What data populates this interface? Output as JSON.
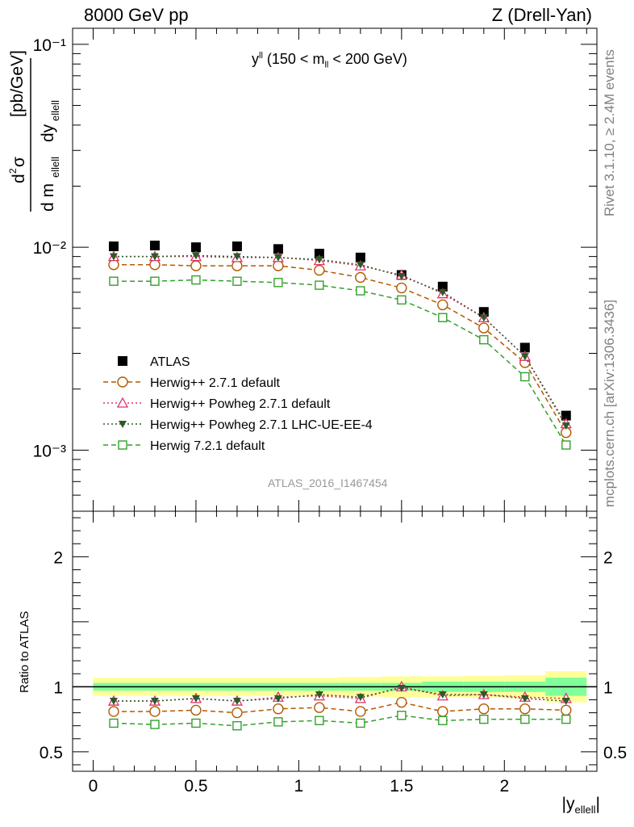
{
  "header": {
    "left": "8000 GeV pp",
    "right": "Z (Drell-Yan)"
  },
  "side_labels": {
    "rivet": "Rivet 3.1.10, ≥ 2.4M events",
    "mcplots": "mcplots.cern.ch [arXiv:1306.3436]"
  },
  "analysis_id": "ATLAS_2016_I1467454",
  "observable": {
    "main": "y",
    "sup": "ll",
    "range_prefix": "(150 < m",
    "range_sub": "ll",
    "range_suffix": " < 200 GeV)"
  },
  "y_axis_label": {
    "units": "[pb/GeV]"
  },
  "ratio_label": "Ratio to ATLAS",
  "x_axis_label": {
    "main": "|y",
    "sub": "ellell",
    "close": "|"
  },
  "chart_data": [
    {
      "type": "scatter",
      "panel": "main",
      "yscale": "log",
      "xlim": [
        -0.1,
        2.45
      ],
      "ylim": [
        0.0005,
        0.12
      ],
      "y_ticks": [
        {
          "value": 0.001,
          "label": "10⁻³"
        },
        {
          "value": 0.01,
          "label": "10⁻²"
        },
        {
          "value": 0.1,
          "label": "10⁻¹"
        }
      ],
      "x": [
        0.1,
        0.3,
        0.5,
        0.7,
        0.9,
        1.1,
        1.3,
        1.5,
        1.7,
        1.9,
        2.1,
        2.3
      ],
      "series": [
        {
          "name": "ATLAS",
          "marker": "filled-square",
          "color": "#000000",
          "values": [
            0.0101,
            0.0102,
            0.01,
            0.0101,
            0.0098,
            0.0093,
            0.0089,
            0.0073,
            0.0064,
            0.0048,
            0.0032,
            0.00148
          ]
        },
        {
          "name": "Herwig++ 2.7.1 default",
          "marker": "open-circle",
          "line": "dashed",
          "color": "#b35900",
          "values": [
            0.0082,
            0.0082,
            0.0081,
            0.0081,
            0.0081,
            0.0077,
            0.0071,
            0.0063,
            0.0052,
            0.004,
            0.0027,
            0.00122
          ]
        },
        {
          "name": "Herwig++ Powheg 2.7.1 default",
          "marker": "open-triangle",
          "line": "dotted",
          "color": "#e0306a",
          "values": [
            0.009,
            0.009,
            0.009,
            0.0089,
            0.0089,
            0.0086,
            0.0081,
            0.0073,
            0.0059,
            0.0045,
            0.0029,
            0.00135
          ]
        },
        {
          "name": "Herwig++ Powheg 2.7.1 LHC-UE-EE-4",
          "marker": "filled-triangle-down",
          "line": "dotted",
          "color": "#2d5a27",
          "values": [
            0.009,
            0.009,
            0.0091,
            0.009,
            0.0089,
            0.0087,
            0.0082,
            0.0072,
            0.006,
            0.0045,
            0.0029,
            0.00132
          ]
        },
        {
          "name": "Herwig 7.2.1 default",
          "marker": "open-square",
          "line": "dashed",
          "color": "#33a02c",
          "values": [
            0.0068,
            0.0068,
            0.0069,
            0.0068,
            0.0067,
            0.0065,
            0.0061,
            0.0055,
            0.0045,
            0.0035,
            0.0023,
            0.00106
          ]
        }
      ]
    },
    {
      "type": "scatter",
      "panel": "ratio",
      "xlim": [
        -0.1,
        2.45
      ],
      "ylim": [
        0.35,
        2.35
      ],
      "x_ticks": [
        {
          "value": 0,
          "label": "0"
        },
        {
          "value": 0.5,
          "label": "0.5"
        },
        {
          "value": 1,
          "label": "1"
        },
        {
          "value": 1.5,
          "label": "1.5"
        },
        {
          "value": 2,
          "label": "2"
        }
      ],
      "y_ticks": [
        {
          "value": 0.5,
          "label": "0.5"
        },
        {
          "value": 1,
          "label": "1"
        },
        {
          "value": 2,
          "label": "2"
        }
      ],
      "x": [
        0.1,
        0.3,
        0.5,
        0.7,
        0.9,
        1.1,
        1.3,
        1.5,
        1.7,
        1.9,
        2.1,
        2.3
      ],
      "bands": {
        "bin_edges": [
          0.0,
          0.2,
          0.4,
          0.6,
          0.8,
          1.0,
          1.2,
          1.4,
          1.6,
          1.8,
          2.0,
          2.2,
          2.4
        ],
        "stat": [
          0.03,
          0.03,
          0.03,
          0.03,
          0.03,
          0.03,
          0.03,
          0.03,
          0.04,
          0.04,
          0.04,
          0.07
        ],
        "total": [
          0.07,
          0.07,
          0.07,
          0.07,
          0.07,
          0.07,
          0.075,
          0.08,
          0.08,
          0.085,
          0.09,
          0.12
        ],
        "stat_color": "#80ff9a",
        "total_color": "#ffff99"
      },
      "series": [
        {
          "name": "Herwig++ 2.7.1 default",
          "color": "#b35900",
          "values": [
            0.81,
            0.81,
            0.82,
            0.8,
            0.83,
            0.84,
            0.81,
            0.88,
            0.81,
            0.83,
            0.83,
            0.82
          ]
        },
        {
          "name": "Herwig++ Powheg 2.7.1 default",
          "color": "#e0306a",
          "values": [
            0.89,
            0.89,
            0.91,
            0.89,
            0.92,
            0.93,
            0.91,
            1.0,
            0.93,
            0.94,
            0.92,
            0.91
          ]
        },
        {
          "name": "Herwig++ Powheg 2.7.1 LHC-UE-EE-4",
          "color": "#2d5a27",
          "values": [
            0.89,
            0.89,
            0.91,
            0.89,
            0.91,
            0.94,
            0.92,
            0.99,
            0.94,
            0.94,
            0.91,
            0.89
          ]
        },
        {
          "name": "Herwig 7.2.1 default",
          "color": "#33a02c",
          "values": [
            0.72,
            0.71,
            0.72,
            0.7,
            0.73,
            0.74,
            0.72,
            0.78,
            0.74,
            0.75,
            0.75,
            0.75
          ]
        }
      ]
    }
  ]
}
